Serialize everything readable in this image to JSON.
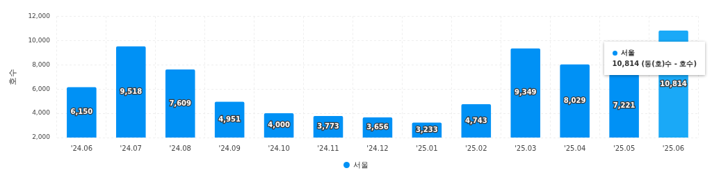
{
  "chart_data": {
    "type": "bar",
    "ylabel": "호수",
    "categories": [
      "'24.06",
      "'24.07",
      "'24.08",
      "'24.09",
      "'24.10",
      "'24.11",
      "'24.12",
      "'25.01",
      "'25.02",
      "'25.03",
      "'25.04",
      "'25.05",
      "'25.06"
    ],
    "series": [
      {
        "name": "서울",
        "color": "#0091f5",
        "colors": [
          "#0091f5",
          "#0091f5",
          "#0091f5",
          "#0091f5",
          "#0091f5",
          "#0091f5",
          "#0091f5",
          "#0091f5",
          "#0091f5",
          "#0091f5",
          "#0091f5",
          "#0091f5",
          "#1aa9f7"
        ],
        "values": [
          6150,
          9518,
          7609,
          4951,
          4000,
          3773,
          3656,
          3233,
          4743,
          9349,
          8029,
          7221,
          10814
        ],
        "value_labels": [
          "6,150",
          "9,518",
          "7,609",
          "4,951",
          "4,000",
          "3,773",
          "3,656",
          "3,233",
          "4,743",
          "9,349",
          "8,029",
          "7,221",
          "10,814"
        ]
      }
    ],
    "ylim": [
      2000,
      12000
    ],
    "yticks": [
      {
        "value": 2000,
        "label": "2,000"
      },
      {
        "value": 4000,
        "label": "4,000"
      },
      {
        "value": 6000,
        "label": "6,000"
      },
      {
        "value": 8000,
        "label": "8,000"
      },
      {
        "value": 10000,
        "label": "10,000"
      },
      {
        "value": 12000,
        "label": "12,000"
      }
    ],
    "grid": true,
    "legend": "bottom",
    "annotations": [
      "서울",
      "10,814 (동(호)수 - 호수)"
    ]
  }
}
